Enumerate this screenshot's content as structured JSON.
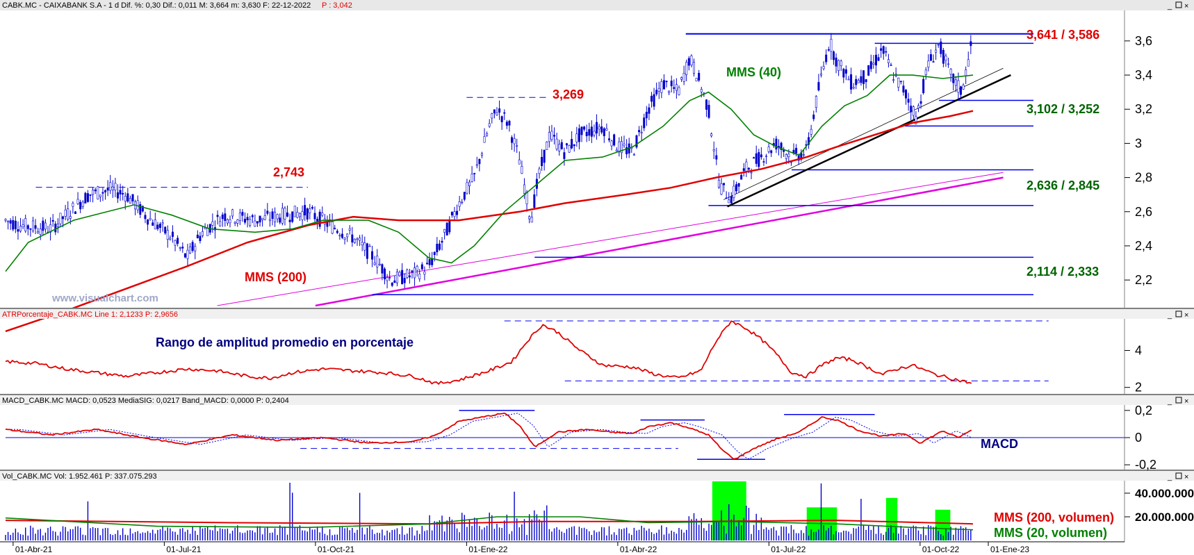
{
  "header": {
    "main": "CABK.MC - CAIXABANK S.A -  1 d  Dif. %: 0,30  Dif.: 0,011  M: 3,664  m: 3,630  F: 22-12-2022",
    "main_p": "P : 3,042",
    "atr": "ATRPorcentaje_CABK.MC  Line 1: 2,1233  P: 2,9656",
    "macd": "MACD_CABK.MC  MACD: 0,0523  MediaSIG: 0,0217  Band_MACD: 0,0000  P: 0,2404",
    "vol": "Vol_CABK.MC  Vol: 1.952.461  P: 337.075.293"
  },
  "watermark": "www.visualchart.com",
  "annotations": {
    "mms40": "MMS (40)",
    "mms200": "MMS (200)",
    "r3269": "3,269",
    "r2743": "2,743",
    "r3641": "3,641 / 3,586",
    "r3102": "3,102 / 3,252",
    "r2636": "2,636 / 2,845",
    "r2114": "2,114 / 2,333",
    "atr_title": "Rango de amplitud promedio en porcentaje",
    "macd_label": "MACD",
    "vol_mms200": "MMS (200, volumen)",
    "vol_mms20": "MMS (20, volumen)"
  },
  "colors": {
    "candle": "#0000cc",
    "mms40": "#008000",
    "mms200": "#e00000",
    "levels": "#0000ee",
    "trend": "#000000",
    "pink": "#e000e0",
    "price_up": "#e00000",
    "support": "#006400",
    "volume_highlight": "#00ff00"
  },
  "chart_data": [
    {
      "type": "candlestick",
      "title": "CABK.MC - CAIXABANK S.A",
      "ylim": [
        2.05,
        3.75
      ],
      "yticks": [
        "3,6",
        "3,4",
        "3,2",
        "3",
        "2,8",
        "2,6",
        "2,4",
        "2,2"
      ],
      "xticks": [
        "01-Abr-21",
        "01-Jul-21",
        "01-Oct-21",
        "01-Ene-22",
        "01-Abr-22",
        "01-Jul-22",
        "01-Oct-22",
        "01-Ene-23"
      ],
      "price_path": [
        [
          0,
          2.55
        ],
        [
          20,
          2.52
        ],
        [
          60,
          2.5
        ],
        [
          90,
          2.62
        ],
        [
          110,
          2.7
        ],
        [
          140,
          2.73
        ],
        [
          160,
          2.7
        ],
        [
          185,
          2.58
        ],
        [
          220,
          2.45
        ],
        [
          240,
          2.33
        ],
        [
          260,
          2.48
        ],
        [
          290,
          2.58
        ],
        [
          330,
          2.55
        ],
        [
          370,
          2.58
        ],
        [
          400,
          2.6
        ],
        [
          430,
          2.52
        ],
        [
          460,
          2.45
        ],
        [
          490,
          2.32
        ],
        [
          510,
          2.2
        ],
        [
          540,
          2.23
        ],
        [
          560,
          2.28
        ],
        [
          580,
          2.45
        ],
        [
          600,
          2.65
        ],
        [
          620,
          2.8
        ],
        [
          640,
          3.1
        ],
        [
          650,
          3.2
        ],
        [
          665,
          3.12
        ],
        [
          680,
          2.9
        ],
        [
          695,
          2.55
        ],
        [
          705,
          2.8
        ],
        [
          720,
          3.05
        ],
        [
          740,
          2.95
        ],
        [
          760,
          3.05
        ],
        [
          790,
          3.1
        ],
        [
          810,
          2.98
        ],
        [
          830,
          2.95
        ],
        [
          850,
          3.2
        ],
        [
          870,
          3.35
        ],
        [
          890,
          3.3
        ],
        [
          905,
          3.5
        ],
        [
          915,
          3.4
        ],
        [
          930,
          3.2
        ],
        [
          945,
          2.75
        ],
        [
          960,
          2.68
        ],
        [
          980,
          2.85
        ],
        [
          1000,
          2.92
        ],
        [
          1020,
          3.0
        ],
        [
          1040,
          2.92
        ],
        [
          1060,
          2.95
        ],
        [
          1075,
          3.3
        ],
        [
          1090,
          3.6
        ],
        [
          1100,
          3.48
        ],
        [
          1120,
          3.35
        ],
        [
          1140,
          3.4
        ],
        [
          1160,
          3.55
        ],
        [
          1175,
          3.4
        ],
        [
          1190,
          3.3
        ],
        [
          1205,
          3.15
        ],
        [
          1220,
          3.45
        ],
        [
          1235,
          3.58
        ],
        [
          1250,
          3.4
        ],
        [
          1265,
          3.3
        ],
        [
          1280,
          3.62
        ]
      ],
      "mms40_path": [
        [
          0,
          2.25
        ],
        [
          30,
          2.42
        ],
        [
          90,
          2.55
        ],
        [
          170,
          2.64
        ],
        [
          220,
          2.58
        ],
        [
          270,
          2.5
        ],
        [
          330,
          2.48
        ],
        [
          380,
          2.5
        ],
        [
          420,
          2.55
        ],
        [
          480,
          2.55
        ],
        [
          520,
          2.48
        ],
        [
          560,
          2.33
        ],
        [
          590,
          2.3
        ],
        [
          620,
          2.4
        ],
        [
          660,
          2.6
        ],
        [
          700,
          2.75
        ],
        [
          740,
          2.9
        ],
        [
          790,
          2.92
        ],
        [
          830,
          2.98
        ],
        [
          870,
          3.1
        ],
        [
          905,
          3.25
        ],
        [
          930,
          3.3
        ],
        [
          960,
          3.2
        ],
        [
          990,
          3.05
        ],
        [
          1020,
          2.98
        ],
        [
          1050,
          2.93
        ],
        [
          1080,
          3.1
        ],
        [
          1110,
          3.22
        ],
        [
          1140,
          3.28
        ],
        [
          1170,
          3.4
        ],
        [
          1200,
          3.4
        ],
        [
          1240,
          3.38
        ],
        [
          1280,
          3.4
        ]
      ],
      "mms200_path": [
        [
          0,
          1.9
        ],
        [
          80,
          2.02
        ],
        [
          160,
          2.15
        ],
        [
          240,
          2.28
        ],
        [
          320,
          2.42
        ],
        [
          400,
          2.52
        ],
        [
          460,
          2.57
        ],
        [
          520,
          2.55
        ],
        [
          600,
          2.55
        ],
        [
          680,
          2.6
        ],
        [
          740,
          2.65
        ],
        [
          820,
          2.7
        ],
        [
          880,
          2.74
        ],
        [
          940,
          2.8
        ],
        [
          1000,
          2.85
        ],
        [
          1060,
          2.92
        ],
        [
          1100,
          2.98
        ],
        [
          1150,
          3.05
        ],
        [
          1200,
          3.12
        ],
        [
          1250,
          3.16
        ],
        [
          1280,
          3.19
        ]
      ],
      "levels": [
        {
          "name": "3,641",
          "value": 3.641
        },
        {
          "name": "3,586",
          "value": 3.586
        },
        {
          "name": "3,252",
          "value": 3.252
        },
        {
          "name": "3,102",
          "value": 3.102
        },
        {
          "name": "2,845",
          "value": 2.845
        },
        {
          "name": "2,636",
          "value": 2.636
        },
        {
          "name": "2,333",
          "value": 2.333
        },
        {
          "name": "2,114",
          "value": 2.114
        },
        {
          "name": "3,269",
          "value": 3.269
        },
        {
          "name": "2,743",
          "value": 2.743
        }
      ]
    },
    {
      "type": "line",
      "title": "ATRPorcentaje_CABK.MC",
      "ylim": [
        1.8,
        5.6
      ],
      "yticks": [
        "4",
        "2"
      ],
      "values_path": [
        [
          0,
          3.4
        ],
        [
          40,
          3.3
        ],
        [
          80,
          3.0
        ],
        [
          120,
          2.8
        ],
        [
          160,
          2.6
        ],
        [
          200,
          2.8
        ],
        [
          240,
          3.0
        ],
        [
          280,
          2.9
        ],
        [
          320,
          2.6
        ],
        [
          350,
          2.5
        ],
        [
          380,
          2.8
        ],
        [
          420,
          3.0
        ],
        [
          460,
          2.9
        ],
        [
          500,
          2.8
        ],
        [
          540,
          2.6
        ],
        [
          570,
          2.2
        ],
        [
          600,
          2.4
        ],
        [
          640,
          2.9
        ],
        [
          670,
          3.4
        ],
        [
          690,
          4.5
        ],
        [
          710,
          5.4
        ],
        [
          730,
          5.0
        ],
        [
          760,
          4.0
        ],
        [
          790,
          3.2
        ],
        [
          830,
          3.1
        ],
        [
          860,
          2.7
        ],
        [
          890,
          2.5
        ],
        [
          920,
          2.9
        ],
        [
          940,
          4.5
        ],
        [
          960,
          5.6
        ],
        [
          980,
          5.2
        ],
        [
          1000,
          4.6
        ],
        [
          1020,
          3.8
        ],
        [
          1040,
          2.8
        ],
        [
          1060,
          2.6
        ],
        [
          1080,
          3.2
        ],
        [
          1100,
          3.6
        ],
        [
          1120,
          3.5
        ],
        [
          1140,
          3.1
        ],
        [
          1160,
          2.7
        ],
        [
          1180,
          3.0
        ],
        [
          1200,
          3.2
        ],
        [
          1230,
          2.7
        ],
        [
          1260,
          2.4
        ],
        [
          1280,
          2.2
        ]
      ]
    },
    {
      "type": "line",
      "title": "MACD_CABK.MC",
      "ylim": [
        -0.23,
        0.23
      ],
      "yticks": [
        "0,2",
        "0",
        "-0,2"
      ],
      "values_path": [
        [
          0,
          0.06
        ],
        [
          60,
          0.02
        ],
        [
          120,
          0.06
        ],
        [
          180,
          0.0
        ],
        [
          240,
          -0.05
        ],
        [
          300,
          0.02
        ],
        [
          360,
          -0.02
        ],
        [
          420,
          0.0
        ],
        [
          480,
          -0.04
        ],
        [
          540,
          -0.03
        ],
        [
          570,
          0.02
        ],
        [
          600,
          0.12
        ],
        [
          640,
          0.16
        ],
        [
          660,
          0.18
        ],
        [
          680,
          0.09
        ],
        [
          700,
          -0.07
        ],
        [
          730,
          0.04
        ],
        [
          770,
          0.06
        ],
        [
          800,
          0.04
        ],
        [
          830,
          0.03
        ],
        [
          850,
          0.08
        ],
        [
          880,
          0.11
        ],
        [
          900,
          0.08
        ],
        [
          930,
          0.02
        ],
        [
          950,
          -0.1
        ],
        [
          965,
          -0.16
        ],
        [
          990,
          -0.08
        ],
        [
          1020,
          -0.01
        ],
        [
          1050,
          0.04
        ],
        [
          1080,
          0.15
        ],
        [
          1100,
          0.13
        ],
        [
          1130,
          0.05
        ],
        [
          1160,
          0.01
        ],
        [
          1190,
          0.03
        ],
        [
          1210,
          -0.04
        ],
        [
          1240,
          0.05
        ],
        [
          1260,
          0.0
        ],
        [
          1280,
          0.06
        ]
      ]
    },
    {
      "type": "bar",
      "title": "Vol_CABK.MC",
      "ylim": [
        0,
        50000000
      ],
      "yticks": [
        "40.000.000",
        "20.000.000"
      ],
      "highlights": [
        [
          935,
          980
        ],
        [
          1060,
          1100
        ],
        [
          1165,
          1180
        ],
        [
          1230,
          1250
        ]
      ]
    }
  ]
}
